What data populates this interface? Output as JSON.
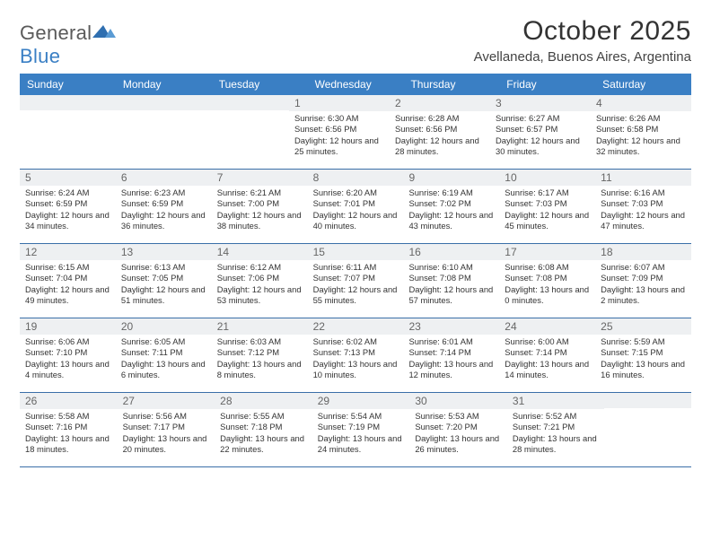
{
  "brand": {
    "name_a": "General",
    "name_b": "Blue"
  },
  "title": "October 2025",
  "location": "Avellaneda, Buenos Aires, Argentina",
  "colors": {
    "header_bg": "#3a7fc4",
    "rule": "#3a6fa8",
    "daynum_bg": "#eef0f2",
    "text": "#333333"
  },
  "day_names": [
    "Sunday",
    "Monday",
    "Tuesday",
    "Wednesday",
    "Thursday",
    "Friday",
    "Saturday"
  ],
  "weeks": [
    [
      null,
      null,
      null,
      {
        "n": "1",
        "rise": "6:30 AM",
        "set": "6:56 PM",
        "day": "12 hours and 25 minutes."
      },
      {
        "n": "2",
        "rise": "6:28 AM",
        "set": "6:56 PM",
        "day": "12 hours and 28 minutes."
      },
      {
        "n": "3",
        "rise": "6:27 AM",
        "set": "6:57 PM",
        "day": "12 hours and 30 minutes."
      },
      {
        "n": "4",
        "rise": "6:26 AM",
        "set": "6:58 PM",
        "day": "12 hours and 32 minutes."
      }
    ],
    [
      {
        "n": "5",
        "rise": "6:24 AM",
        "set": "6:59 PM",
        "day": "12 hours and 34 minutes."
      },
      {
        "n": "6",
        "rise": "6:23 AM",
        "set": "6:59 PM",
        "day": "12 hours and 36 minutes."
      },
      {
        "n": "7",
        "rise": "6:21 AM",
        "set": "7:00 PM",
        "day": "12 hours and 38 minutes."
      },
      {
        "n": "8",
        "rise": "6:20 AM",
        "set": "7:01 PM",
        "day": "12 hours and 40 minutes."
      },
      {
        "n": "9",
        "rise": "6:19 AM",
        "set": "7:02 PM",
        "day": "12 hours and 43 minutes."
      },
      {
        "n": "10",
        "rise": "6:17 AM",
        "set": "7:03 PM",
        "day": "12 hours and 45 minutes."
      },
      {
        "n": "11",
        "rise": "6:16 AM",
        "set": "7:03 PM",
        "day": "12 hours and 47 minutes."
      }
    ],
    [
      {
        "n": "12",
        "rise": "6:15 AM",
        "set": "7:04 PM",
        "day": "12 hours and 49 minutes."
      },
      {
        "n": "13",
        "rise": "6:13 AM",
        "set": "7:05 PM",
        "day": "12 hours and 51 minutes."
      },
      {
        "n": "14",
        "rise": "6:12 AM",
        "set": "7:06 PM",
        "day": "12 hours and 53 minutes."
      },
      {
        "n": "15",
        "rise": "6:11 AM",
        "set": "7:07 PM",
        "day": "12 hours and 55 minutes."
      },
      {
        "n": "16",
        "rise": "6:10 AM",
        "set": "7:08 PM",
        "day": "12 hours and 57 minutes."
      },
      {
        "n": "17",
        "rise": "6:08 AM",
        "set": "7:08 PM",
        "day": "13 hours and 0 minutes."
      },
      {
        "n": "18",
        "rise": "6:07 AM",
        "set": "7:09 PM",
        "day": "13 hours and 2 minutes."
      }
    ],
    [
      {
        "n": "19",
        "rise": "6:06 AM",
        "set": "7:10 PM",
        "day": "13 hours and 4 minutes."
      },
      {
        "n": "20",
        "rise": "6:05 AM",
        "set": "7:11 PM",
        "day": "13 hours and 6 minutes."
      },
      {
        "n": "21",
        "rise": "6:03 AM",
        "set": "7:12 PM",
        "day": "13 hours and 8 minutes."
      },
      {
        "n": "22",
        "rise": "6:02 AM",
        "set": "7:13 PM",
        "day": "13 hours and 10 minutes."
      },
      {
        "n": "23",
        "rise": "6:01 AM",
        "set": "7:14 PM",
        "day": "13 hours and 12 minutes."
      },
      {
        "n": "24",
        "rise": "6:00 AM",
        "set": "7:14 PM",
        "day": "13 hours and 14 minutes."
      },
      {
        "n": "25",
        "rise": "5:59 AM",
        "set": "7:15 PM",
        "day": "13 hours and 16 minutes."
      }
    ],
    [
      {
        "n": "26",
        "rise": "5:58 AM",
        "set": "7:16 PM",
        "day": "13 hours and 18 minutes."
      },
      {
        "n": "27",
        "rise": "5:56 AM",
        "set": "7:17 PM",
        "day": "13 hours and 20 minutes."
      },
      {
        "n": "28",
        "rise": "5:55 AM",
        "set": "7:18 PM",
        "day": "13 hours and 22 minutes."
      },
      {
        "n": "29",
        "rise": "5:54 AM",
        "set": "7:19 PM",
        "day": "13 hours and 24 minutes."
      },
      {
        "n": "30",
        "rise": "5:53 AM",
        "set": "7:20 PM",
        "day": "13 hours and 26 minutes."
      },
      {
        "n": "31",
        "rise": "5:52 AM",
        "set": "7:21 PM",
        "day": "13 hours and 28 minutes."
      },
      null
    ]
  ],
  "labels": {
    "sunrise": "Sunrise:",
    "sunset": "Sunset:",
    "daylight": "Daylight:"
  }
}
